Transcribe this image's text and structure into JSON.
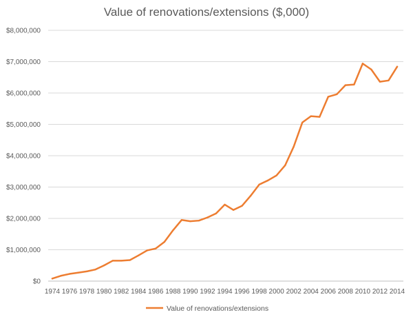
{
  "chart_data": {
    "type": "line",
    "title": "Value of renovations/extensions ($,000)",
    "xlabel": "",
    "ylabel": "",
    "ylim": [
      0,
      8000000
    ],
    "yticks": [
      "$0",
      "$1,000,000",
      "$2,000,000",
      "$3,000,000",
      "$4,000,000",
      "$5,000,000",
      "$6,000,000",
      "$7,000,000",
      "$8,000,000"
    ],
    "xticks": [
      "1974",
      "1976",
      "1978",
      "1980",
      "1982",
      "1984",
      "1986",
      "1988",
      "1990",
      "1992",
      "1994",
      "1996",
      "1998",
      "2000",
      "2002",
      "2004",
      "2006",
      "2008",
      "2010",
      "2012",
      "2014"
    ],
    "grid": true,
    "legend_position": "bottom",
    "x": [
      1974,
      1975,
      1976,
      1977,
      1978,
      1979,
      1980,
      1981,
      1982,
      1983,
      1984,
      1985,
      1986,
      1987,
      1988,
      1989,
      1990,
      1991,
      1992,
      1993,
      1994,
      1995,
      1996,
      1997,
      1998,
      1999,
      2000,
      2001,
      2002,
      2003,
      2004,
      2005,
      2006,
      2007,
      2008,
      2009,
      2010,
      2011,
      2012,
      2013,
      2014
    ],
    "series": [
      {
        "name": "Value of renovations/extensions",
        "color": "#ED7D31",
        "values": [
          80000,
          170000,
          230000,
          270000,
          310000,
          370000,
          500000,
          650000,
          650000,
          670000,
          820000,
          980000,
          1040000,
          1250000,
          1620000,
          1950000,
          1910000,
          1930000,
          2030000,
          2160000,
          2440000,
          2270000,
          2400000,
          2720000,
          3080000,
          3210000,
          3370000,
          3690000,
          4290000,
          5060000,
          5260000,
          5240000,
          5880000,
          5960000,
          6250000,
          6270000,
          6940000,
          6750000,
          6360000,
          6400000,
          6840000
        ]
      }
    ]
  }
}
